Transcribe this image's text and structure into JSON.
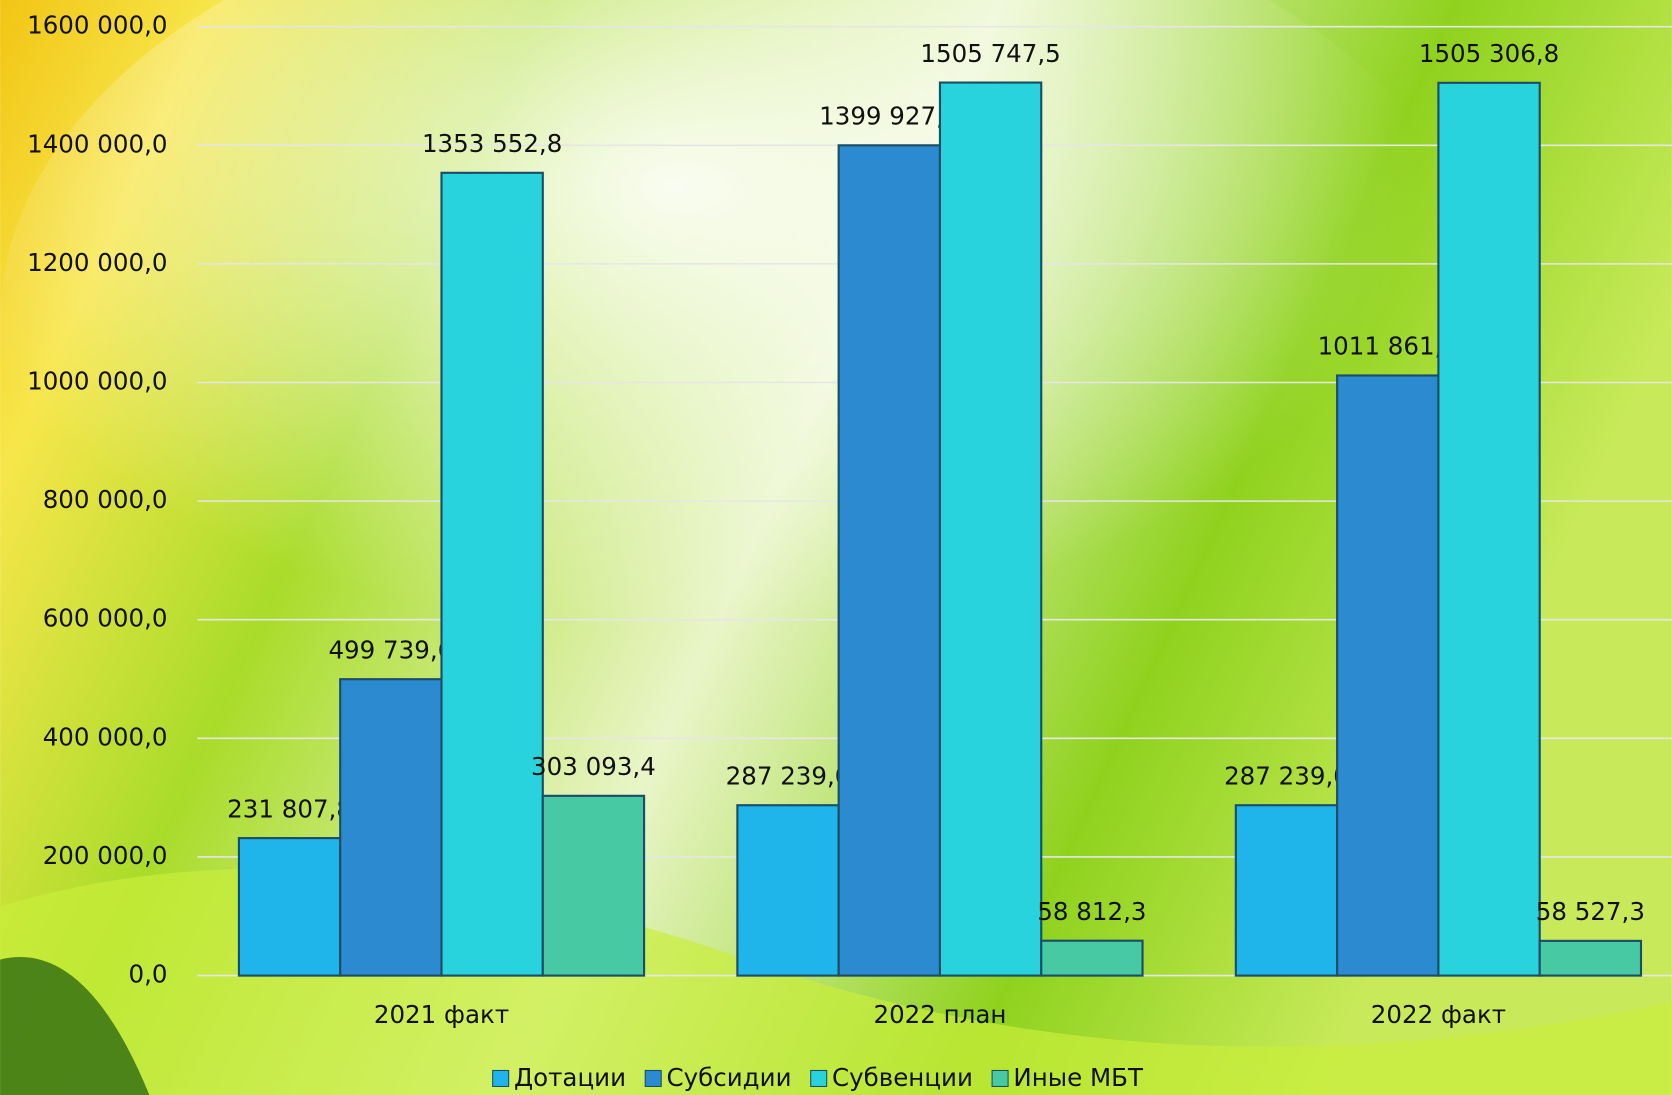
{
  "chart_data": {
    "type": "bar",
    "categories": [
      "2021 факт",
      "2022 план",
      "2022 факт"
    ],
    "series": [
      {
        "name": "Дотации",
        "color": "#1fb5ea",
        "values": [
          231807.8,
          287239.0,
          287239.0
        ],
        "value_labels": [
          "231 807,8",
          "287 239,0",
          "287 239,0"
        ]
      },
      {
        "name": "Субсидии",
        "color": "#2b8ad0",
        "values": [
          499739.6,
          1399927.0,
          1011861.6
        ],
        "value_labels": [
          "499 739,6",
          "1399 927,0",
          "1011 861,6"
        ]
      },
      {
        "name": "Субвенции",
        "color": "#28d3dd",
        "values": [
          1353552.8,
          1505747.5,
          1505306.8
        ],
        "value_labels": [
          "1353 552,8",
          "1505 747,5",
          "1505 306,8"
        ]
      },
      {
        "name": "Иные МБТ",
        "color": "#47c9a3",
        "values": [
          303093.4,
          58812.3,
          58527.3
        ],
        "value_labels": [
          "303 093,4",
          "58 812,3",
          "58 527,3"
        ]
      }
    ],
    "ylim": [
      0,
      1600000
    ],
    "yticks": [
      {
        "value": 0,
        "label": "0,0"
      },
      {
        "value": 200000,
        "label": "200 000,0"
      },
      {
        "value": 400000,
        "label": "400 000,0"
      },
      {
        "value": 600000,
        "label": "600 000,0"
      },
      {
        "value": 800000,
        "label": "800 000,0"
      },
      {
        "value": 1000000,
        "label": "1000 000,0"
      },
      {
        "value": 1200000,
        "label": "1200 000,0"
      },
      {
        "value": 1400000,
        "label": "1400 000,0"
      },
      {
        "value": 1600000,
        "label": "1600 000,0"
      }
    ],
    "grid": true,
    "legend": "bottom"
  }
}
